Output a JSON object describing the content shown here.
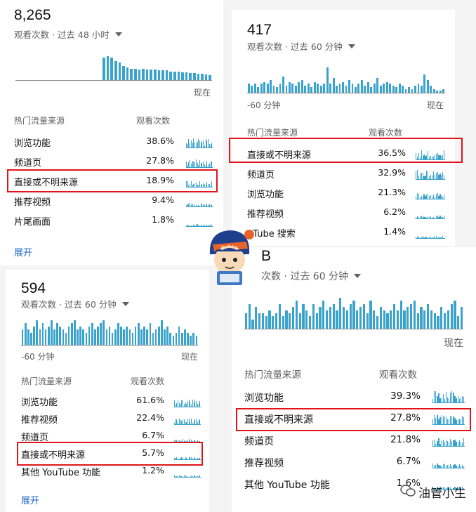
{
  "highlight_color": "#e2141a",
  "bar_color": "#3aa3cd",
  "panels": [
    {
      "id": "p1",
      "total": "8,265",
      "subtitle": "观看次数 · 过去 48 小时",
      "axis_start": "",
      "axis_end": "现在",
      "col_source": "热门流量来源",
      "col_views": "观看次数",
      "expand": "展开",
      "chart_data": {
        "type": "bar",
        "values": [
          0,
          0,
          0,
          0,
          0,
          0,
          0,
          0,
          0,
          0,
          0,
          0,
          0,
          0,
          0,
          0,
          0,
          0,
          0,
          0,
          0,
          0,
          28,
          30,
          28,
          24,
          22,
          18,
          16,
          14,
          14,
          13,
          14,
          13,
          13,
          13,
          12,
          12,
          12,
          11,
          11,
          11,
          10,
          10,
          9,
          9,
          8,
          8,
          7,
          6
        ]
      },
      "rows": [
        {
          "name": "浏览功能",
          "value": "38.6%",
          "highlight": false
        },
        {
          "name": "频道页",
          "value": "27.8%",
          "highlight": false
        },
        {
          "name": "直接或不明来源",
          "value": "18.9%",
          "highlight": true
        },
        {
          "name": "推荐视频",
          "value": "9.4%",
          "highlight": false
        },
        {
          "name": "片尾画面",
          "value": "1.8%",
          "highlight": false
        }
      ]
    },
    {
      "id": "p2",
      "total": "417",
      "subtitle": "观看次数 · 过去 60 分钟",
      "axis_start": "-60 分钟",
      "axis_end": "现在",
      "col_source": "热门流量来源",
      "col_views": "观看次数",
      "chart_data": {
        "type": "bar",
        "values": [
          5,
          4,
          5,
          3,
          5,
          6,
          5,
          7,
          4,
          3,
          5,
          9,
          4,
          6,
          5,
          4,
          6,
          7,
          4,
          5,
          3,
          6,
          5,
          4,
          5,
          14,
          5,
          8,
          4,
          5,
          6,
          4,
          7,
          5,
          3,
          5,
          7,
          4,
          6,
          3,
          5,
          8,
          4,
          5,
          6,
          5,
          4,
          3,
          5,
          4,
          2,
          3,
          2,
          4,
          5,
          4,
          10,
          7,
          4,
          2,
          1,
          1,
          2
        ]
      },
      "rows": [
        {
          "name": "直接或不明来源",
          "value": "36.5%",
          "highlight": true
        },
        {
          "name": "频道页",
          "value": "32.9%",
          "highlight": false
        },
        {
          "name": "浏览功能",
          "value": "21.3%",
          "highlight": false
        },
        {
          "name": "推荐视频",
          "value": "6.2%",
          "highlight": false
        },
        {
          "name": "uTube 搜索",
          "value": "1.4%",
          "highlight": false
        }
      ]
    },
    {
      "id": "p3",
      "total": "594",
      "subtitle": "观看次数 · 过去 60 分钟",
      "axis_start": "-60 分钟",
      "axis_end": "现在",
      "col_source": "热门流量来源",
      "col_views": "观看次数",
      "expand": "展开",
      "chart_data": {
        "type": "bar",
        "values": [
          5,
          7,
          5,
          4,
          6,
          8,
          5,
          7,
          5,
          6,
          8,
          5,
          7,
          6,
          5,
          4,
          6,
          7,
          8,
          5,
          6,
          5,
          4,
          6,
          7,
          5,
          6,
          7,
          8,
          5,
          6,
          4,
          5,
          7,
          6,
          5,
          6,
          5,
          4,
          6,
          7,
          5,
          6,
          5,
          7,
          4,
          5,
          6,
          8,
          5,
          6,
          4,
          3,
          4,
          6,
          4,
          5,
          4,
          3,
          4,
          3
        ]
      },
      "rows": [
        {
          "name": "浏览功能",
          "value": "61.6%",
          "highlight": false
        },
        {
          "name": "推荐视频",
          "value": "22.4%",
          "highlight": false
        },
        {
          "name": "频道页",
          "value": "6.7%",
          "highlight": false
        },
        {
          "name": "直接或不明来源",
          "value": "5.7%",
          "highlight": true
        },
        {
          "name": "其他 YouTube 功能",
          "value": "1.2%",
          "highlight": false
        }
      ]
    },
    {
      "id": "p4",
      "total": "B",
      "subtitle": "次数 · 过去 60 分钟",
      "axis_start": "",
      "axis_end": "现在",
      "col_source": "热门流量来源",
      "col_views": "观看次数",
      "chart_data": {
        "type": "bar",
        "values": [
          5,
          8,
          3,
          7,
          5,
          5,
          4,
          6,
          4,
          5,
          8,
          4,
          6,
          5,
          7,
          9,
          5,
          8,
          6,
          4,
          8,
          5,
          7,
          9,
          6,
          7,
          8,
          6,
          10,
          7,
          6,
          8,
          9,
          6,
          7,
          8,
          5,
          9,
          6,
          4,
          7,
          6,
          5,
          6,
          8,
          6,
          9,
          6,
          7,
          8,
          9,
          5,
          7,
          6,
          8,
          6,
          5,
          4,
          7,
          5,
          6,
          8,
          9,
          4,
          7
        ]
      },
      "rows": [
        {
          "name": "浏览功能",
          "value": "39.3%",
          "highlight": false
        },
        {
          "name": "直接或不明来源",
          "value": "27.8%",
          "highlight": true
        },
        {
          "name": "频道页",
          "value": "21.8%",
          "highlight": false
        },
        {
          "name": "推荐视频",
          "value": "6.7%",
          "highlight": false
        },
        {
          "name": "其他 YouTube 功能",
          "value": "1.6%",
          "highlight": false
        }
      ]
    }
  ],
  "watermark": "油管小生"
}
